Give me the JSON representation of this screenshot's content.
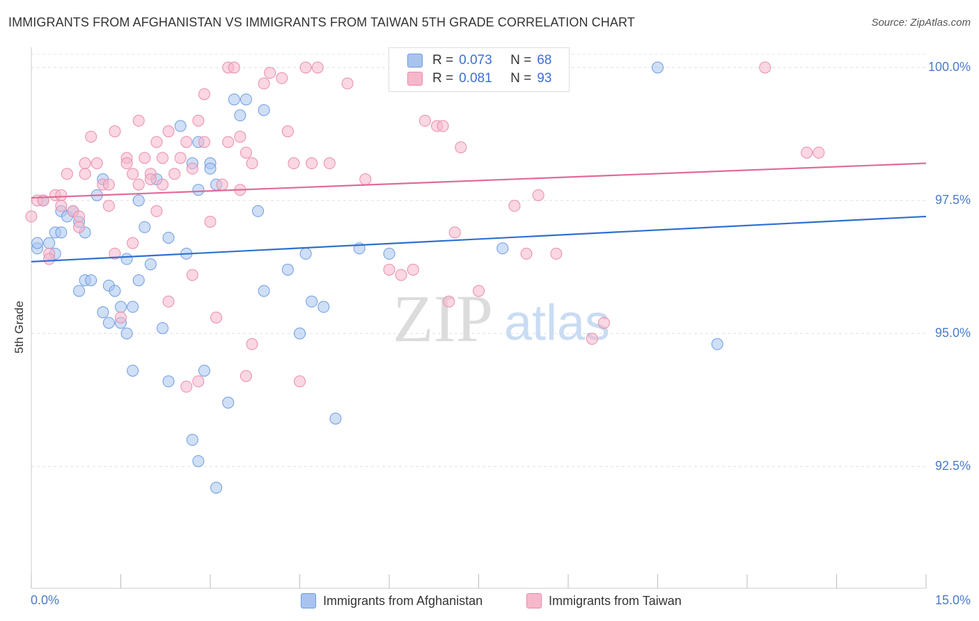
{
  "title": "IMMIGRANTS FROM AFGHANISTAN VS IMMIGRANTS FROM TAIWAN 5TH GRADE CORRELATION CHART",
  "source": "Source: ZipAtlas.com",
  "watermark": {
    "zip": "ZIP",
    "atlas": "atlas"
  },
  "colors": {
    "afghanistan_fill": "#a8c4ee",
    "afghanistan_stroke": "#6e9be0",
    "afghanistan_line": "#2f6fcf",
    "taiwan_fill": "#f6b7cb",
    "taiwan_stroke": "#e98bab",
    "taiwan_line": "#e06a98",
    "tick_label": "#4a7cc9"
  },
  "legend_top": {
    "rows": [
      {
        "r_label": "R =",
        "r_value": "0.073",
        "n_label": "N =",
        "n_value": "68"
      },
      {
        "r_label": "R =",
        "r_value": "0.081",
        "n_label": "N =",
        "n_value": "93"
      }
    ]
  },
  "legend_bottom": {
    "afghanistan": "Immigrants from Afghanistan",
    "taiwan": "Immigrants from Taiwan"
  },
  "chart_data": {
    "type": "scatter",
    "title": "IMMIGRANTS FROM AFGHANISTAN VS IMMIGRANTS FROM TAIWAN 5TH GRADE CORRELATION CHART",
    "xlabel": "",
    "ylabel": "5th Grade",
    "xlim": [
      0,
      15
    ],
    "ylim": [
      90.0,
      100.2
    ],
    "x_tick_labels": [
      "0.0%",
      "15.0%"
    ],
    "y_ticks": [
      92.5,
      95.0,
      97.5,
      100.0
    ],
    "y_tick_labels": [
      "92.5%",
      "95.0%",
      "97.5%",
      "100.0%"
    ],
    "grid": true,
    "legend_placement": "top-center",
    "series": [
      {
        "name": "Immigrants from Afghanistan",
        "r": 0.073,
        "n": 68,
        "trend": {
          "x": [
            0,
            15
          ],
          "y": [
            96.35,
            97.2
          ]
        },
        "points": [
          [
            0.1,
            96.6
          ],
          [
            0.1,
            96.7
          ],
          [
            0.2,
            97.5
          ],
          [
            0.3,
            96.7
          ],
          [
            0.4,
            96.5
          ],
          [
            0.4,
            96.9
          ],
          [
            0.5,
            97.3
          ],
          [
            0.5,
            96.9
          ],
          [
            0.6,
            97.2
          ],
          [
            0.7,
            97.3
          ],
          [
            0.8,
            97.1
          ],
          [
            0.8,
            95.8
          ],
          [
            0.9,
            96.9
          ],
          [
            0.9,
            96.0
          ],
          [
            1.0,
            96.0
          ],
          [
            1.1,
            97.6
          ],
          [
            1.2,
            97.9
          ],
          [
            1.2,
            95.4
          ],
          [
            1.3,
            95.2
          ],
          [
            1.3,
            95.9
          ],
          [
            1.4,
            95.8
          ],
          [
            1.5,
            95.5
          ],
          [
            1.5,
            95.2
          ],
          [
            1.6,
            96.4
          ],
          [
            1.6,
            95.0
          ],
          [
            1.7,
            95.5
          ],
          [
            1.7,
            94.3
          ],
          [
            1.8,
            96.0
          ],
          [
            1.8,
            97.5
          ],
          [
            1.9,
            97.0
          ],
          [
            2.0,
            96.3
          ],
          [
            2.1,
            97.9
          ],
          [
            2.2,
            95.1
          ],
          [
            2.3,
            94.1
          ],
          [
            2.3,
            96.8
          ],
          [
            2.5,
            98.9
          ],
          [
            2.6,
            96.5
          ],
          [
            2.7,
            98.2
          ],
          [
            2.7,
            93.0
          ],
          [
            2.8,
            97.7
          ],
          [
            2.8,
            98.6
          ],
          [
            2.8,
            92.6
          ],
          [
            2.9,
            94.3
          ],
          [
            3.0,
            98.2
          ],
          [
            3.0,
            98.1
          ],
          [
            3.1,
            97.8
          ],
          [
            3.1,
            92.1
          ],
          [
            3.3,
            93.7
          ],
          [
            3.4,
            99.4
          ],
          [
            3.5,
            99.1
          ],
          [
            3.6,
            99.4
          ],
          [
            3.8,
            97.3
          ],
          [
            3.9,
            95.8
          ],
          [
            3.9,
            99.2
          ],
          [
            4.3,
            96.2
          ],
          [
            4.5,
            95.0
          ],
          [
            4.6,
            96.5
          ],
          [
            4.7,
            95.6
          ],
          [
            4.9,
            95.5
          ],
          [
            5.1,
            93.4
          ],
          [
            5.5,
            96.6
          ],
          [
            6.0,
            96.5
          ],
          [
            7.5,
            99.8
          ],
          [
            7.9,
            96.6
          ],
          [
            8.0,
            100.0
          ],
          [
            10.5,
            100.0
          ],
          [
            11.5,
            94.8
          ],
          [
            6.8,
            99.8
          ]
        ]
      },
      {
        "name": "Immigrants from Taiwan",
        "r": 0.081,
        "n": 93,
        "trend": {
          "x": [
            0,
            15
          ],
          "y": [
            97.55,
            98.2
          ]
        },
        "points": [
          [
            0.0,
            97.2
          ],
          [
            0.1,
            97.5
          ],
          [
            0.2,
            97.5
          ],
          [
            0.3,
            96.5
          ],
          [
            0.3,
            96.4
          ],
          [
            0.4,
            97.6
          ],
          [
            0.5,
            97.6
          ],
          [
            0.5,
            97.4
          ],
          [
            0.6,
            98.0
          ],
          [
            0.7,
            97.3
          ],
          [
            0.8,
            97.2
          ],
          [
            0.8,
            97.0
          ],
          [
            0.9,
            98.2
          ],
          [
            0.9,
            98.0
          ],
          [
            1.0,
            98.7
          ],
          [
            1.1,
            98.2
          ],
          [
            1.2,
            97.8
          ],
          [
            1.3,
            97.8
          ],
          [
            1.3,
            97.4
          ],
          [
            1.4,
            98.8
          ],
          [
            1.4,
            96.5
          ],
          [
            1.5,
            95.3
          ],
          [
            1.6,
            98.3
          ],
          [
            1.6,
            98.2
          ],
          [
            1.7,
            98.0
          ],
          [
            1.7,
            96.7
          ],
          [
            1.8,
            99.0
          ],
          [
            1.8,
            97.8
          ],
          [
            1.9,
            98.3
          ],
          [
            2.0,
            98.0
          ],
          [
            2.0,
            97.9
          ],
          [
            2.1,
            97.3
          ],
          [
            2.1,
            98.6
          ],
          [
            2.2,
            98.3
          ],
          [
            2.2,
            97.8
          ],
          [
            2.3,
            98.8
          ],
          [
            2.3,
            95.6
          ],
          [
            2.4,
            98.0
          ],
          [
            2.5,
            98.3
          ],
          [
            2.6,
            98.6
          ],
          [
            2.6,
            94.0
          ],
          [
            2.7,
            98.1
          ],
          [
            2.7,
            96.1
          ],
          [
            2.8,
            94.1
          ],
          [
            2.8,
            99.0
          ],
          [
            2.9,
            98.6
          ],
          [
            2.9,
            99.5
          ],
          [
            3.0,
            97.1
          ],
          [
            3.1,
            95.3
          ],
          [
            3.2,
            97.8
          ],
          [
            3.3,
            98.6
          ],
          [
            3.3,
            100.0
          ],
          [
            3.4,
            100.0
          ],
          [
            3.5,
            98.7
          ],
          [
            3.5,
            97.7
          ],
          [
            3.6,
            98.4
          ],
          [
            3.6,
            94.2
          ],
          [
            3.7,
            98.2
          ],
          [
            3.7,
            94.8
          ],
          [
            3.9,
            99.7
          ],
          [
            4.0,
            99.9
          ],
          [
            4.2,
            99.8
          ],
          [
            4.3,
            98.8
          ],
          [
            4.4,
            98.2
          ],
          [
            4.5,
            94.1
          ],
          [
            4.6,
            100.0
          ],
          [
            4.7,
            98.2
          ],
          [
            4.8,
            100.0
          ],
          [
            5.0,
            98.2
          ],
          [
            5.3,
            99.7
          ],
          [
            5.6,
            97.9
          ],
          [
            6.0,
            96.2
          ],
          [
            6.2,
            96.1
          ],
          [
            6.4,
            96.2
          ],
          [
            6.5,
            100.0
          ],
          [
            6.6,
            99.0
          ],
          [
            6.8,
            98.9
          ],
          [
            6.9,
            98.9
          ],
          [
            7.0,
            95.6
          ],
          [
            7.1,
            96.9
          ],
          [
            7.2,
            98.5
          ],
          [
            7.5,
            95.8
          ],
          [
            7.7,
            100.0
          ],
          [
            7.8,
            100.0
          ],
          [
            8.1,
            97.4
          ],
          [
            8.3,
            96.5
          ],
          [
            8.5,
            97.6
          ],
          [
            8.8,
            96.5
          ],
          [
            9.4,
            94.9
          ],
          [
            9.6,
            95.2
          ],
          [
            12.3,
            100.0
          ],
          [
            13.0,
            98.4
          ],
          [
            13.2,
            98.4
          ]
        ]
      }
    ]
  }
}
